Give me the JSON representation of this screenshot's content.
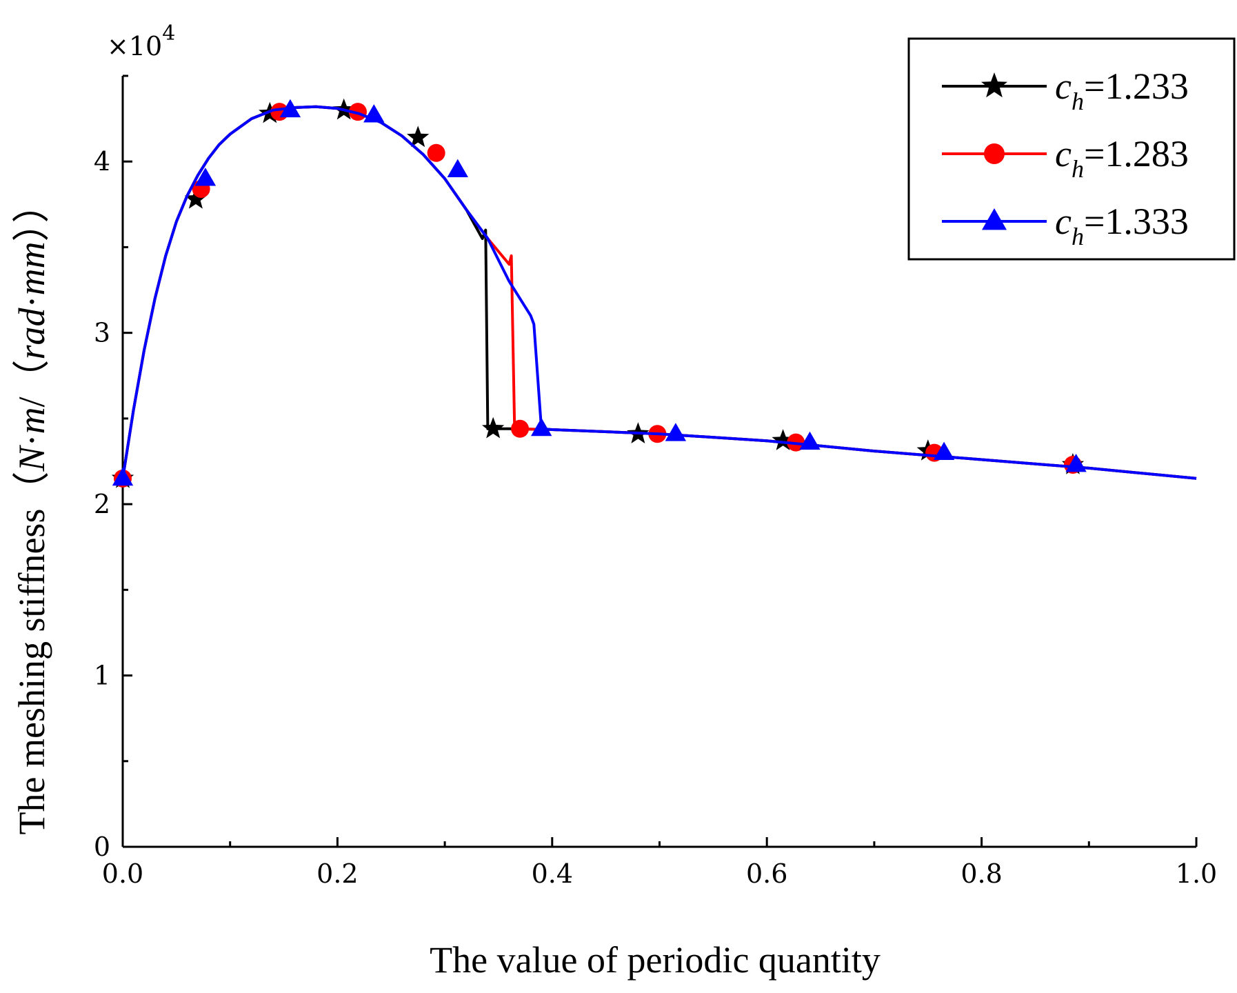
{
  "chart_data": {
    "type": "line",
    "title": "",
    "xlabel": "The value of periodic quantity",
    "ylabel": "The meshing stiffness",
    "ylabel_unit_open": "（",
    "ylabel_unit_N": "N",
    "ylabel_unit_dot1": "·",
    "ylabel_unit_m": "m",
    "ylabel_unit_slash": "/",
    "ylabel_unit_rad": "rad",
    "ylabel_unit_dot2": "·",
    "ylabel_unit_mm": "mm",
    "ylabel_unit_close": "）",
    "ylabel_unit_end": "）",
    "multiplier_base": "×10",
    "multiplier_exp": "4",
    "xlim": [
      0,
      1.0
    ],
    "ylim": [
      0,
      4.5
    ],
    "x_ticks": [
      "0.0",
      "0.2",
      "0.4",
      "0.6",
      "0.8",
      "1.0"
    ],
    "y_ticks": [
      "0",
      "1",
      "2",
      "3",
      "4"
    ],
    "legend_position": "top-right",
    "series": [
      {
        "name": "c_h=1.233",
        "legend_var": "c",
        "legend_sub": "h",
        "legend_rest": "=1.233",
        "color": "#000000",
        "marker": "star",
        "x": [
          0.0,
          0.01,
          0.02,
          0.03,
          0.04,
          0.05,
          0.06,
          0.07,
          0.08,
          0.09,
          0.1,
          0.12,
          0.14,
          0.16,
          0.18,
          0.2,
          0.22,
          0.24,
          0.26,
          0.28,
          0.3,
          0.32,
          0.335,
          0.338,
          0.34,
          0.36,
          0.4,
          0.5,
          0.6,
          0.7,
          0.8,
          0.9,
          1.0
        ],
        "y": [
          2.15,
          2.55,
          2.9,
          3.2,
          3.45,
          3.65,
          3.8,
          3.92,
          4.02,
          4.1,
          4.16,
          4.25,
          4.3,
          4.315,
          4.32,
          4.31,
          4.28,
          4.23,
          4.15,
          4.04,
          3.9,
          3.72,
          3.55,
          3.6,
          2.44,
          2.44,
          2.435,
          2.41,
          2.37,
          2.31,
          2.26,
          2.21,
          2.15
        ],
        "marker_x": [
          0.0,
          0.068,
          0.137,
          0.206,
          0.275,
          0.345,
          0.48,
          0.615,
          0.75,
          0.885
        ],
        "marker_y": [
          2.15,
          3.78,
          4.28,
          4.3,
          4.14,
          2.44,
          2.41,
          2.37,
          2.31,
          2.23
        ]
      },
      {
        "name": "c_h=1.283",
        "legend_var": "c",
        "legend_sub": "h",
        "legend_rest": "=1.283",
        "color": "#ff0000",
        "marker": "circle",
        "x": [
          0.0,
          0.01,
          0.02,
          0.03,
          0.04,
          0.05,
          0.06,
          0.07,
          0.08,
          0.09,
          0.1,
          0.12,
          0.14,
          0.16,
          0.18,
          0.2,
          0.22,
          0.24,
          0.26,
          0.28,
          0.3,
          0.32,
          0.34,
          0.36,
          0.362,
          0.365,
          0.4,
          0.5,
          0.6,
          0.7,
          0.8,
          0.9,
          1.0
        ],
        "y": [
          2.15,
          2.55,
          2.9,
          3.2,
          3.45,
          3.65,
          3.8,
          3.92,
          4.02,
          4.1,
          4.16,
          4.25,
          4.3,
          4.315,
          4.32,
          4.31,
          4.28,
          4.23,
          4.15,
          4.04,
          3.9,
          3.72,
          3.55,
          3.4,
          3.45,
          2.44,
          2.435,
          2.41,
          2.37,
          2.31,
          2.26,
          2.21,
          2.15
        ],
        "marker_x": [
          0.0,
          0.073,
          0.146,
          0.219,
          0.292,
          0.37,
          0.498,
          0.627,
          0.756,
          0.885
        ],
        "marker_y": [
          2.15,
          3.84,
          4.29,
          4.29,
          4.05,
          2.44,
          2.41,
          2.36,
          2.3,
          2.23
        ]
      },
      {
        "name": "c_h=1.333",
        "legend_var": "c",
        "legend_sub": "h",
        "legend_rest": "=1.333",
        "color": "#0000ff",
        "marker": "triangle",
        "x": [
          0.0,
          0.01,
          0.02,
          0.03,
          0.04,
          0.05,
          0.06,
          0.07,
          0.08,
          0.09,
          0.1,
          0.12,
          0.14,
          0.16,
          0.18,
          0.2,
          0.22,
          0.24,
          0.26,
          0.28,
          0.3,
          0.32,
          0.34,
          0.36,
          0.38,
          0.383,
          0.39,
          0.4,
          0.5,
          0.6,
          0.7,
          0.8,
          0.9,
          1.0
        ],
        "y": [
          2.15,
          2.55,
          2.9,
          3.2,
          3.45,
          3.65,
          3.8,
          3.92,
          4.02,
          4.1,
          4.16,
          4.25,
          4.3,
          4.315,
          4.32,
          4.31,
          4.28,
          4.23,
          4.15,
          4.04,
          3.9,
          3.72,
          3.55,
          3.3,
          3.1,
          3.05,
          2.44,
          2.435,
          2.41,
          2.37,
          2.31,
          2.26,
          2.21,
          2.15
        ],
        "marker_x": [
          0.0,
          0.077,
          0.156,
          0.234,
          0.312,
          0.39,
          0.515,
          0.64,
          0.765,
          0.888
        ],
        "marker_y": [
          2.15,
          3.9,
          4.3,
          4.27,
          3.95,
          2.44,
          2.41,
          2.36,
          2.3,
          2.23
        ]
      }
    ]
  }
}
